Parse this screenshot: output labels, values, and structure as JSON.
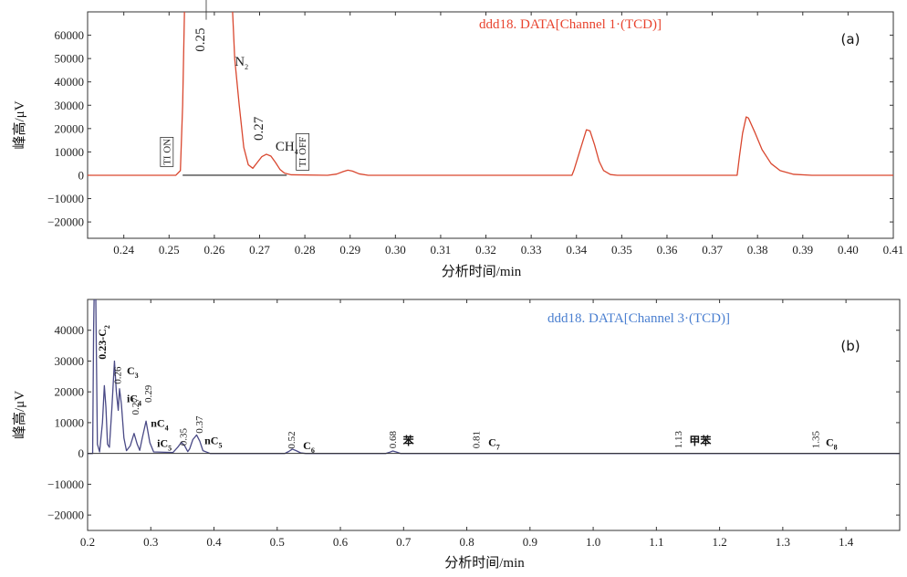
{
  "chart_data": [
    {
      "panel": "(a)",
      "type": "line",
      "title": "ddd18. DATA[Channel 1·(TCD)]",
      "title_color": "#e8432e",
      "line_color": "#d9472f",
      "xlabel": "分析时间/min",
      "ylabel": "峰高/μV",
      "xlim": [
        0.232,
        0.41
      ],
      "ylim": [
        -27000,
        70000
      ],
      "xticks": [
        0.24,
        0.25,
        0.26,
        0.27,
        0.28,
        0.29,
        0.3,
        0.31,
        0.32,
        0.33,
        0.34,
        0.35,
        0.36,
        0.37,
        0.38,
        0.39,
        0.4,
        0.41
      ],
      "xtick_labels": [
        "0.24",
        "0.25",
        "0.26",
        "0.27",
        "0.28",
        "0.29",
        "0.30",
        "0.31",
        "0.32",
        "0.33",
        "0.34",
        "0.35",
        "0.36",
        "0.37",
        "0.38",
        "0.39",
        "0.40",
        "0.41"
      ],
      "yticks": [
        -20000,
        -10000,
        0,
        10000,
        20000,
        30000,
        40000,
        50000,
        60000
      ],
      "ytick_labels": [
        "−20000",
        "−10000",
        "0",
        "10000",
        "20000",
        "30000",
        "40000",
        "50000",
        "60000"
      ],
      "series": [
        {
          "points": [
            [
              0.232,
              0
            ],
            [
              0.2515,
              0
            ],
            [
              0.2525,
              2000
            ],
            [
              0.253,
              30000
            ],
            [
              0.2535,
              80000
            ],
            [
              0.2638,
              80000
            ],
            [
              0.2645,
              50000
            ],
            [
              0.2655,
              30000
            ],
            [
              0.2665,
              12000
            ],
            [
              0.2675,
              4500
            ],
            [
              0.2685,
              3000
            ],
            [
              0.2695,
              5500
            ],
            [
              0.2705,
              8000
            ],
            [
              0.2715,
              9000
            ],
            [
              0.2725,
              8200
            ],
            [
              0.2735,
              5500
            ],
            [
              0.2745,
              2500
            ],
            [
              0.2755,
              900
            ],
            [
              0.277,
              200
            ],
            [
              0.285,
              0
            ],
            [
              0.287,
              500
            ],
            [
              0.2885,
              1600
            ],
            [
              0.2895,
              2200
            ],
            [
              0.2905,
              1800
            ],
            [
              0.292,
              600
            ],
            [
              0.294,
              0
            ],
            [
              0.339,
              0
            ],
            [
              0.3395,
              2500
            ],
            [
              0.341,
              12000
            ],
            [
              0.3422,
              19500
            ],
            [
              0.343,
              19000
            ],
            [
              0.344,
              13000
            ],
            [
              0.345,
              6000
            ],
            [
              0.346,
              2000
            ],
            [
              0.3475,
              300
            ],
            [
              0.349,
              0
            ],
            [
              0.3755,
              0
            ],
            [
              0.376,
              8000
            ],
            [
              0.3767,
              18000
            ],
            [
              0.3775,
              25000
            ],
            [
              0.378,
              24500
            ],
            [
              0.3795,
              18000
            ],
            [
              0.381,
              11000
            ],
            [
              0.383,
              5000
            ],
            [
              0.385,
              2000
            ],
            [
              0.388,
              400
            ],
            [
              0.392,
              0
            ],
            [
              0.41,
              0
            ]
          ]
        }
      ],
      "baseline_segment": [
        0.253,
        0.276
      ],
      "annotations": [
        {
          "text": "0.25",
          "x": 0.2578,
          "y": 58000
        },
        {
          "text": "N",
          "sub": "2",
          "x": 0.2645,
          "y": 47000
        },
        {
          "text": "0.27",
          "x": 0.2707,
          "y": 20000
        },
        {
          "text": "CH",
          "sub": "4",
          "x": 0.2735,
          "y": 10500
        }
      ],
      "markers": [
        {
          "text": "TI ON",
          "x": 0.2495
        },
        {
          "text": "TI OFF",
          "x": 0.2795
        }
      ]
    },
    {
      "panel": "(b)",
      "type": "line",
      "title": "ddd18. DATA[Channel 3·(TCD)]",
      "title_color": "#4a7fd0",
      "line_color": "#4a4a86",
      "xlabel": "分析时间/min",
      "ylabel": "峰高/μV",
      "xlim": [
        0.2,
        1.485
      ],
      "ylim": [
        -25000,
        50000
      ],
      "xticks": [
        0.2,
        0.3,
        0.4,
        0.5,
        0.6,
        0.7,
        0.8,
        0.9,
        1.0,
        1.1,
        1.2,
        1.3,
        1.4
      ],
      "xtick_labels": [
        "0.2",
        "0.3",
        "0.4",
        "0.5",
        "0.6",
        "0.7",
        "0.8",
        "0.9",
        "1.0",
        "1.1",
        "1.2",
        "1.3",
        "1.4"
      ],
      "yticks": [
        -20000,
        -10000,
        0,
        10000,
        20000,
        30000,
        40000
      ],
      "ytick_labels": [
        "−20000",
        "−10000",
        "0",
        "10000",
        "20000",
        "30000",
        "40000"
      ],
      "series": [
        {
          "points": [
            [
              0.2,
              0
            ],
            [
              0.208,
              0
            ],
            [
              0.2095,
              40000
            ],
            [
              0.211,
              60000
            ],
            [
              0.2125,
              60000
            ],
            [
              0.2135,
              40000
            ],
            [
              0.2155,
              3000
            ],
            [
              0.219,
              500
            ],
            [
              0.2235,
              10000
            ],
            [
              0.2265,
              22000
            ],
            [
              0.229,
              15000
            ],
            [
              0.2315,
              3000
            ],
            [
              0.2345,
              2000
            ],
            [
              0.2385,
              15000
            ],
            [
              0.2425,
              30000
            ],
            [
              0.2455,
              20000
            ],
            [
              0.2485,
              14000
            ],
            [
              0.2505,
              21000
            ],
            [
              0.2535,
              16000
            ],
            [
              0.2575,
              5000
            ],
            [
              0.2615,
              900
            ],
            [
              0.2675,
              2500
            ],
            [
              0.2735,
              6500
            ],
            [
              0.2785,
              3000
            ],
            [
              0.2825,
              1000
            ],
            [
              0.2865,
              5000
            ],
            [
              0.2925,
              10500
            ],
            [
              0.2985,
              3500
            ],
            [
              0.3045,
              500
            ],
            [
              0.335,
              300
            ],
            [
              0.3425,
              2000
            ],
            [
              0.3485,
              3600
            ],
            [
              0.3535,
              2500
            ],
            [
              0.3585,
              600
            ],
            [
              0.3615,
              1500
            ],
            [
              0.3665,
              4500
            ],
            [
              0.3725,
              6000
            ],
            [
              0.3775,
              4000
            ],
            [
              0.3825,
              900
            ],
            [
              0.394,
              0
            ],
            [
              0.512,
              0
            ],
            [
              0.518,
              600
            ],
            [
              0.524,
              1400
            ],
            [
              0.53,
              900
            ],
            [
              0.537,
              200
            ],
            [
              0.545,
              0
            ],
            [
              0.672,
              0
            ],
            [
              0.678,
              400
            ],
            [
              0.683,
              800
            ],
            [
              0.688,
              500
            ],
            [
              0.695,
              0
            ],
            [
              1.485,
              0
            ]
          ]
        }
      ],
      "annotations": [
        {
          "text": "0.23-C",
          "sub": "2",
          "x": 0.229,
          "y": 30500
        },
        {
          "text": "0.26",
          "x": 0.253,
          "y": 22500
        },
        {
          "text": "C",
          "sub": "3",
          "x": 0.262,
          "y": 25700
        },
        {
          "text": "iC",
          "sub": "4",
          "x": 0.262,
          "y": 16600
        },
        {
          "text": "0.27",
          "x": 0.281,
          "y": 12500
        },
        {
          "text": "0.29",
          "x": 0.301,
          "y": 16500
        },
        {
          "text": "nC",
          "sub": "4",
          "x": 0.3,
          "y": 8700
        },
        {
          "text": "iC",
          "sub": "5",
          "x": 0.31,
          "y": 2100
        },
        {
          "text": "0.35",
          "x": 0.357,
          "y": 2500
        },
        {
          "text": "0.37",
          "x": 0.382,
          "y": 6500
        },
        {
          "text": "nC",
          "sub": "5",
          "x": 0.385,
          "y": 3000
        },
        {
          "text": "0.52",
          "x": 0.528,
          "y": 1500
        },
        {
          "text": "C",
          "sub": "6",
          "x": 0.541,
          "y": 1400
        },
        {
          "text": "0.68",
          "x": 0.688,
          "y": 1600
        },
        {
          "text": "苯",
          "x": 0.699,
          "y": 2800
        },
        {
          "text": "0.81",
          "x": 0.82,
          "y": 1600
        },
        {
          "text": "C",
          "sub": "7",
          "x": 0.834,
          "y": 2400
        },
        {
          "text": "1.13",
          "x": 1.14,
          "y": 1600
        },
        {
          "text": "甲苯",
          "x": 1.152,
          "y": 2900
        },
        {
          "text": "1.35",
          "x": 1.357,
          "y": 1600
        },
        {
          "text": "C",
          "sub": "8",
          "x": 1.368,
          "y": 2400
        }
      ]
    }
  ]
}
